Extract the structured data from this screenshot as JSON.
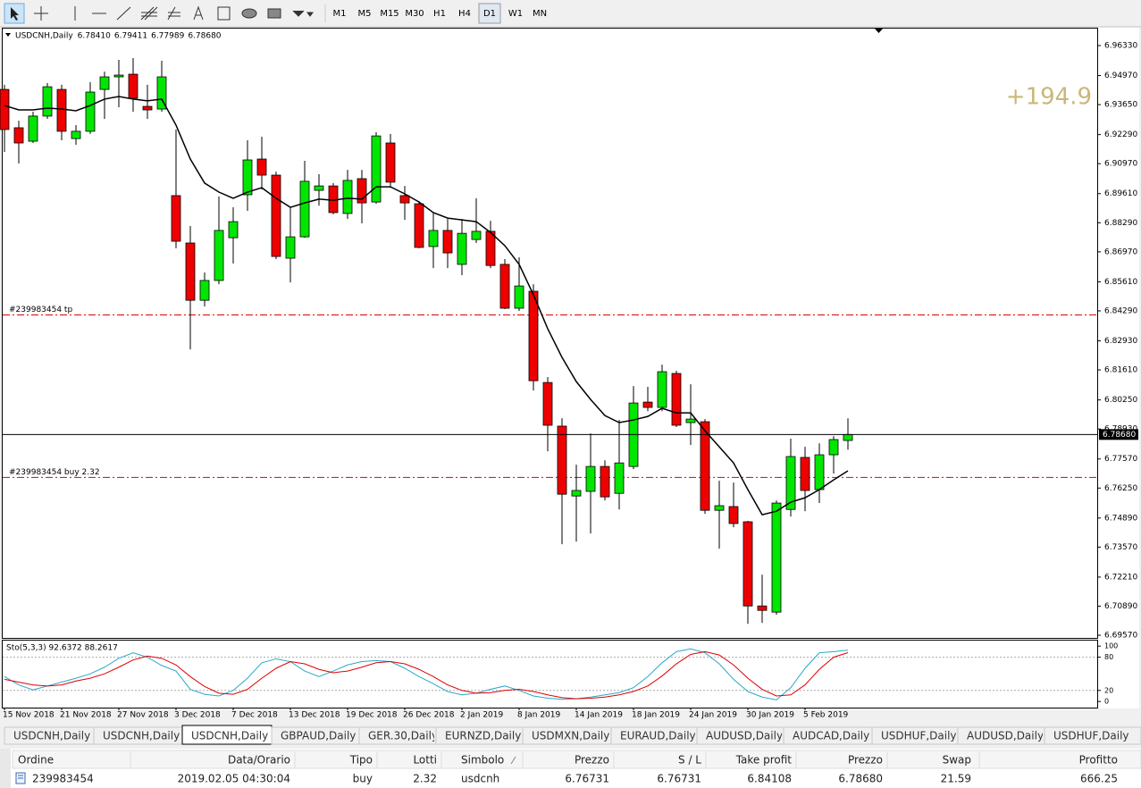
{
  "toolbar": {
    "timeframes": [
      "M1",
      "M5",
      "M15",
      "M30",
      "H1",
      "H4",
      "D1",
      "W1",
      "MN"
    ],
    "active": 6
  },
  "chart_data": {
    "type": "candlestick",
    "title": "USDCNH,Daily",
    "header_values": [
      "6.78410",
      "6.79411",
      "6.77989",
      "6.78680"
    ],
    "categories": [
      "15 Nov 2018",
      null,
      null,
      null,
      "21 Nov 2018",
      null,
      null,
      null,
      "27 Nov 2018",
      null,
      null,
      null,
      "3 Dec 2018",
      null,
      null,
      null,
      "7 Dec 2018",
      null,
      null,
      null,
      "13 Dec 2018",
      null,
      null,
      null,
      "19 Dec 2018",
      null,
      null,
      null,
      "26 Dec 2018",
      null,
      null,
      null,
      "2 Jan 2019",
      null,
      null,
      null,
      "8 Jan 2019",
      null,
      null,
      null,
      "14 Jan 2019",
      null,
      null,
      null,
      "18 Jan 2019",
      null,
      null,
      null,
      "24 Jan 2019",
      null,
      null,
      null,
      "30 Jan 2019",
      null,
      null,
      null,
      "5 Feb 2019",
      null,
      null,
      null
    ],
    "open": [
      6.9434,
      6.926,
      6.9199,
      6.9313,
      6.9434,
      6.9211,
      6.9244,
      6.9434,
      6.9491,
      6.9503,
      6.9357,
      6.9345,
      6.8952,
      6.8737,
      6.8477,
      6.8567,
      6.8761,
      6.8956,
      6.9118,
      6.9045,
      6.8668,
      6.8765,
      6.8976,
      6.8996,
      6.8871,
      6.9029,
      6.8923,
      6.9191,
      6.8952,
      6.8915,
      6.8721,
      6.8794,
      6.864,
      6.8753,
      6.879,
      6.864,
      6.8441,
      6.8518,
      6.8104,
      6.7906,
      6.7589,
      6.761,
      6.7723,
      6.7601,
      6.7723,
      6.8015,
      6.7991,
      6.8145,
      6.7922,
      6.7926,
      6.7524,
      6.7541,
      6.7472,
      6.709,
      6.7062,
      6.7528,
      6.7764,
      6.7618,
      6.7776,
      6.7841
    ],
    "high": [
      6.9455,
      6.9292,
      6.9333,
      6.9463,
      6.9455,
      6.9272,
      6.9467,
      6.9515,
      6.9568,
      6.9576,
      6.9455,
      6.9564,
      6.9252,
      6.8814,
      6.8603,
      6.8948,
      6.8899,
      6.9203,
      6.9219,
      6.9061,
      6.8899,
      6.911,
      6.9049,
      6.9009,
      6.9069,
      6.9069,
      6.924,
      6.9232,
      6.8996,
      6.8927,
      6.8875,
      6.8846,
      6.8846,
      6.894,
      6.8838,
      6.8664,
      6.8672,
      6.855,
      6.8129,
      6.7942,
      6.7731,
      6.7873,
      6.7751,
      6.7934,
      6.8088,
      6.8084,
      6.8185,
      6.8157,
      6.8096,
      6.7938,
      6.7658,
      6.765,
      6.7476,
      6.7232,
      6.7569,
      6.7849,
      6.7812,
      6.7828,
      6.7861,
      6.79411
    ],
    "low": [
      6.915,
      6.9098,
      6.9191,
      6.93,
      6.9203,
      6.9183,
      6.9232,
      6.93,
      6.9353,
      6.9333,
      6.93,
      6.9333,
      6.8713,
      6.8254,
      6.8449,
      6.855,
      6.8644,
      6.8883,
      6.898,
      6.8664,
      6.8558,
      6.8761,
      6.8907,
      6.8867,
      6.8846,
      6.8826,
      6.8915,
      6.8988,
      6.8842,
      6.8713,
      6.8623,
      6.8623,
      6.8591,
      6.8737,
      6.8623,
      6.8437,
      6.8429,
      6.8068,
      6.7792,
      6.737,
      6.7382,
      6.7419,
      6.7569,
      6.7528,
      6.7711,
      6.7974,
      6.7974,
      6.7902,
      6.782,
      6.7508,
      6.735,
      6.7447,
      6.7009,
      6.7013,
      6.705,
      6.7496,
      6.752,
      6.7557,
      6.7691,
      6.77989
    ],
    "close": [
      6.9252,
      6.9191,
      6.9313,
      6.9446,
      6.9244,
      6.9244,
      6.9422,
      6.9491,
      6.9499,
      6.9394,
      6.9341,
      6.9491,
      6.8745,
      6.8477,
      6.8567,
      6.8794,
      6.8834,
      6.9114,
      6.9045,
      6.8676,
      6.8765,
      6.9017,
      6.8996,
      6.8875,
      6.9021,
      6.8919,
      6.9223,
      6.9013,
      6.8919,
      6.8717,
      6.8794,
      6.8692,
      6.8781,
      6.879,
      6.8635,
      6.8441,
      6.8542,
      6.8112,
      6.791,
      6.7597,
      6.7614,
      6.7723,
      6.7585,
      6.7739,
      6.8011,
      6.7991,
      6.8153,
      6.791,
      6.7938,
      6.7524,
      6.7545,
      6.7464,
      6.709,
      6.707,
      6.7557,
      6.7768,
      6.7614,
      6.7776,
      6.7845,
      6.7868
    ],
    "up_color": "#00e600",
    "down_color": "#ee0000",
    "ma": {
      "color": "#000000",
      "values": [
        6.9361,
        6.9341,
        6.9341,
        6.9349,
        6.9345,
        6.9337,
        6.9361,
        6.939,
        6.9402,
        6.939,
        6.9382,
        6.939,
        6.9272,
        6.9118,
        6.9009,
        6.8968,
        6.894,
        6.8968,
        6.8988,
        6.894,
        6.8899,
        6.8919,
        6.8936,
        6.8931,
        6.894,
        6.8936,
        6.8992,
        6.8992,
        6.896,
        6.8923,
        6.8875,
        6.885,
        6.8842,
        6.8834,
        6.8785,
        6.8725,
        6.864,
        6.8502,
        6.8348,
        6.8218,
        6.8108,
        6.8027,
        6.7954,
        6.7922,
        6.7934,
        6.795,
        6.7987,
        6.7966,
        6.7966,
        6.7885,
        6.7812,
        6.7739,
        6.7618,
        6.7504,
        6.752,
        6.7561,
        6.7581,
        6.7618,
        6.7662,
        6.7703
      ]
    },
    "ylim": [
      6.6945,
      6.971
    ],
    "yticks": [
      {
        "value": 6.9633,
        "label": "6.96330"
      },
      {
        "value": 6.9497,
        "label": "6.94970"
      },
      {
        "value": 6.9365,
        "label": "6.93650"
      },
      {
        "value": 6.9229,
        "label": "6.92290"
      },
      {
        "value": 6.9097,
        "label": "6.90970"
      },
      {
        "value": 6.8961,
        "label": "6.89610"
      },
      {
        "value": 6.8829,
        "label": "6.88290"
      },
      {
        "value": 6.8697,
        "label": "6.86970"
      },
      {
        "value": 6.8561,
        "label": "6.85610"
      },
      {
        "value": 6.8429,
        "label": "6.84290"
      },
      {
        "value": 6.8293,
        "label": "6.82930"
      },
      {
        "value": 6.8161,
        "label": "6.81610"
      },
      {
        "value": 6.8025,
        "label": "6.80250"
      },
      {
        "value": 6.7893,
        "label": "6.78930"
      },
      {
        "value": 6.7757,
        "label": "6.77570"
      },
      {
        "value": 6.7625,
        "label": "6.76250"
      },
      {
        "value": 6.7489,
        "label": "6.74890"
      },
      {
        "value": 6.7357,
        "label": "6.73570"
      },
      {
        "value": 6.7221,
        "label": "6.72210"
      },
      {
        "value": 6.7089,
        "label": "6.70890"
      },
      {
        "value": 6.6957,
        "label": "6.69570"
      }
    ],
    "levels": [
      {
        "label": "#239983454 tp",
        "value": 6.84108,
        "color": "#e00000"
      },
      {
        "label": "#239983454 buy 2.32",
        "value": 6.76731,
        "color": "#e00000"
      }
    ],
    "price_line": {
      "value": 6.7868,
      "label": "6.78680"
    },
    "annotation": {
      "text": "+194.9",
      "color": "#c8b878"
    },
    "stochastic": {
      "title": "Sto(5,3,3) 92.6372 88.2617",
      "k_color": "#2aa8c8",
      "d_color": "#e00000",
      "k": [
        45,
        30,
        21,
        28,
        35,
        42,
        50,
        62,
        78,
        88,
        80,
        65,
        55,
        22,
        13,
        10,
        20,
        42,
        70,
        77,
        72,
        55,
        45,
        55,
        66,
        72,
        74,
        72,
        60,
        45,
        32,
        18,
        12,
        15,
        22,
        28,
        20,
        10,
        6,
        4,
        5,
        8,
        12,
        16,
        25,
        45,
        70,
        90,
        95,
        88,
        68,
        40,
        18,
        8,
        3,
        25,
        60,
        88,
        90,
        92.6372
      ],
      "d": [
        40,
        35,
        30,
        28,
        30,
        37,
        42,
        50,
        62,
        75,
        82,
        78,
        66,
        45,
        27,
        15,
        13,
        22,
        42,
        60,
        72,
        68,
        58,
        52,
        55,
        62,
        70,
        72,
        68,
        58,
        45,
        30,
        20,
        15,
        16,
        20,
        22,
        18,
        12,
        7,
        5,
        6,
        8,
        12,
        18,
        28,
        46,
        68,
        85,
        90,
        84,
        66,
        42,
        22,
        10,
        12,
        30,
        58,
        80,
        88.2617
      ],
      "ylim": [
        -11,
        110
      ],
      "yticks": [
        0,
        20,
        80,
        100
      ],
      "levels": [
        20,
        80
      ]
    }
  },
  "tabs": {
    "labels": [
      "USDCNH,Daily",
      "USDCNH,Daily",
      "USDCNH,Daily",
      "GBPAUD,Daily",
      "GER.30,Daily",
      "EURNZD,Daily",
      "USDMXN,Daily",
      "EURAUD,Daily",
      "AUDUSD,Daily",
      "AUDCAD,Daily",
      "USDHUF,Daily",
      "AUDUSD,Daily",
      "USDHUF,Daily"
    ],
    "active": 2
  },
  "table": {
    "headers": [
      "Ordine",
      "Data/Orario",
      "Tipo",
      "Lotti",
      "Simbolo",
      "Prezzo",
      "S / L",
      "Take profit",
      "Prezzo",
      "Swap",
      "Profitto"
    ],
    "rows": [
      [
        "239983454",
        "2019.02.05 04:30:04",
        "buy",
        "2.32",
        "usdcnh",
        "6.76731",
        "6.76731",
        "6.84108",
        "6.78680",
        "21.59",
        "666.25"
      ]
    ]
  }
}
